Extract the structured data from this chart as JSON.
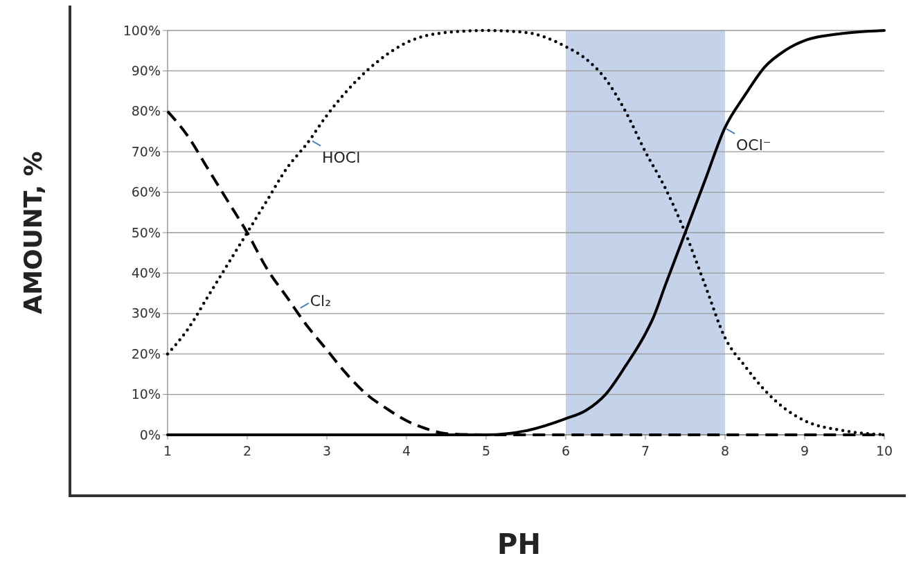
{
  "chart_data": {
    "type": "line",
    "xlabel": "PH",
    "ylabel": "AMOUNT, %",
    "xlim": [
      1,
      10
    ],
    "ylim": [
      0,
      100
    ],
    "xticks": [
      1,
      2,
      3,
      4,
      5,
      6,
      7,
      8,
      9,
      10
    ],
    "yticks": [
      {
        "value": 0,
        "label": "0%"
      },
      {
        "value": 10,
        "label": "10%"
      },
      {
        "value": 20,
        "label": "20%"
      },
      {
        "value": 30,
        "label": "30%"
      },
      {
        "value": 40,
        "label": "40%"
      },
      {
        "value": 50,
        "label": "50%"
      },
      {
        "value": 60,
        "label": "60%"
      },
      {
        "value": 70,
        "label": "70%"
      },
      {
        "value": 80,
        "label": "80%"
      },
      {
        "value": 90,
        "label": "90%"
      },
      {
        "value": 100,
        "label": "100%"
      }
    ],
    "grid": "y",
    "series": [
      {
        "color": "#000000",
        "line_style": "dashed",
        "x": [
          1,
          1.25,
          1.5,
          1.75,
          2,
          2.25,
          2.5,
          2.75,
          3,
          3.25,
          3.5,
          3.75,
          4,
          4.25,
          4.5,
          5,
          6,
          7,
          8,
          9,
          10
        ],
        "values": [
          80,
          74,
          66,
          58,
          50,
          41,
          34,
          27,
          21,
          15,
          10,
          6.5,
          3.5,
          1.5,
          0.3,
          0,
          0,
          0,
          0,
          0,
          0
        ]
      },
      {
        "color": "#000000",
        "line_style": "dotted",
        "x": [
          1,
          1.25,
          1.5,
          1.75,
          2,
          2.25,
          2.5,
          2.75,
          3,
          3.25,
          3.5,
          3.75,
          4,
          4.5,
          5,
          5.5,
          6,
          6.25,
          6.5,
          6.75,
          7,
          7.25,
          7.5,
          7.75,
          8,
          8.25,
          8.5,
          8.75,
          9,
          9.5,
          10
        ],
        "values": [
          20,
          26,
          34,
          42,
          50,
          58,
          66,
          72,
          79,
          85,
          90,
          94,
          97,
          99.5,
          100,
          99.5,
          96,
          93,
          88,
          80,
          70,
          61,
          50,
          37,
          24,
          17,
          11,
          6.5,
          3.5,
          1,
          0
        ]
      },
      {
        "color": "#000000",
        "line_style": "solid",
        "x": [
          1,
          4,
          5,
          5.5,
          6,
          6.25,
          6.5,
          6.75,
          7,
          7.1,
          7.25,
          7.5,
          7.75,
          8,
          8.25,
          8.5,
          8.75,
          9,
          9.5,
          10
        ],
        "values": [
          0,
          0,
          0,
          1,
          4,
          6,
          10,
          17,
          25,
          29,
          37,
          50,
          63,
          76,
          84,
          91,
          95,
          97.5,
          99.3,
          100
        ]
      }
    ],
    "bands": [
      {
        "axis": "x",
        "from": 6,
        "to": 8,
        "color": "#c5d3ea"
      }
    ],
    "annotations": [
      {
        "text": "HOCl",
        "x": 2.8,
        "y": 73
      },
      {
        "text": "Cl₂",
        "x": 2.65,
        "y": 31
      },
      {
        "text": "OCl⁻",
        "x": 8,
        "y": 76
      }
    ]
  }
}
